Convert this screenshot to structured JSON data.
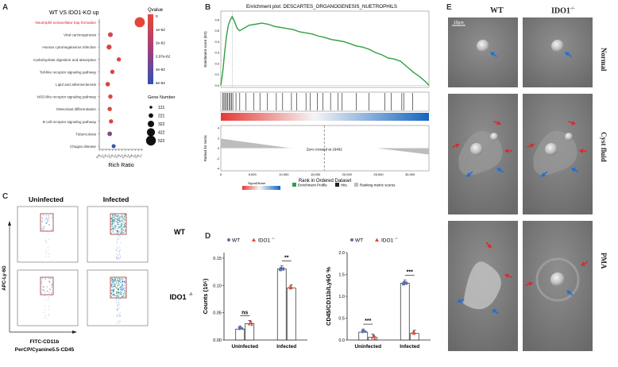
{
  "panels": {
    "A": {
      "letter": "A",
      "title": "WT VS IDO1-KO up",
      "xlabel": "Rich Ratio",
      "legend_q_title": "Qvalue",
      "legend_q_ticks": [
        "0",
        "1e-62",
        "2e-62",
        "2.97e-62",
        "4e-62",
        "5e-62"
      ],
      "legend_size_title": "Gene Number",
      "legend_size_values": [
        "121",
        "221",
        "322",
        "422",
        "522"
      ]
    },
    "B": {
      "letter": "B",
      "title": "Enrichment plot: DESCARTES_ORGANOGENESIS_NUETROPHILS",
      "ylabel_top": "Enrichment score (ES)",
      "ylabel_bottom": "Ranked list metric",
      "xlabel": "Rank in Ordered Dataset",
      "zero_cross": "Zero crossed at 16402",
      "legend_signal": "Signal2Noise",
      "legend_es": "Enrichment Profile",
      "legend_hits": "Hits",
      "legend_rank": "Ranking metric scores"
    },
    "C": {
      "letter": "C",
      "col1": "Uninfected",
      "col2": "Infected",
      "row1": "WT",
      "row2": "IDO1",
      "row2_sup": "-/-",
      "ylabel": "APC-Ly-6G",
      "xlabel1": "FITC-CD11b",
      "xlabel2": "PerCP/Cyanine5.5-CD45"
    },
    "D": {
      "letter": "D",
      "legend_wt": "WT",
      "legend_ko": "IDO1",
      "legend_ko_sup": "-/-",
      "left_ylabel": "Counts (10⁵)",
      "right_ylabel": "CD45/CD11b/Ly6G %",
      "cat1": "Uninfected",
      "cat2": "Infected"
    },
    "E": {
      "letter": "E",
      "col1": "WT",
      "col2": "IDO1",
      "col2_sup": "-/-",
      "row1": "Normal",
      "row2": "Cyst fluid",
      "row3": "PMA",
      "scalebar": "10μm"
    }
  },
  "colors": {
    "wt": "#5b6fb5",
    "ko": "#d94a3a",
    "es_line": "#2ea043",
    "red_text": "#d42020"
  },
  "chart_data": [
    {
      "panel": "A",
      "type": "scatter",
      "title": "WT VS IDO1-KO up",
      "xlabel": "Rich Ratio",
      "xticks": [
        "0.05",
        "0.1",
        "0.15",
        "0.2",
        "0.25",
        "0.3",
        "0.35",
        "0.4",
        "0.45",
        "0.5",
        "0.55",
        "0.6",
        "0.65",
        "0.7"
      ],
      "xlim": [
        0.05,
        0.72
      ],
      "categories": [
        "Neutrophil extracellular trap formation",
        "Viral carcinogenesis",
        "Human cytomegalovirus infection",
        "Carbohydrate digestion and absorption",
        "Toll-like receptor signaling pathway",
        "Lipid and atherosclerosis",
        "NOD-like receptor signaling pathway",
        "Osteoclast differentiation",
        "B cell receptor signaling pathway",
        "Tuberculosis",
        "Chagas disease"
      ],
      "highlight": "Neutrophil extracellular trap formation",
      "rich_ratio": [
        0.67,
        0.22,
        0.2,
        0.35,
        0.25,
        0.18,
        0.22,
        0.21,
        0.23,
        0.21,
        0.27
      ],
      "gene_number": [
        522,
        200,
        210,
        170,
        170,
        180,
        175,
        170,
        165,
        190,
        150
      ],
      "qvalue_rank": [
        0.0,
        0.1,
        0.1,
        0.05,
        0.05,
        0.08,
        0.1,
        0.05,
        0.08,
        0.55,
        0.95
      ]
    },
    {
      "panel": "B",
      "type": "line",
      "title": "Enrichment plot: DESCARTES_ORGANOGENESIS_NUETROPHILS",
      "xlabel": "Rank in Ordered Dataset",
      "ylabel": "Enrichment score (ES)",
      "xticks": [
        "0",
        "5,000",
        "10,000",
        "15,000",
        "20,000",
        "25,000",
        "30,000"
      ],
      "yticks": [
        "0.0",
        "0.1",
        "0.2",
        "0.3",
        "0.4",
        "0.5",
        "0.6"
      ],
      "xlim": [
        0,
        33000
      ],
      "ylim": [
        -0.02,
        0.68
      ],
      "x": [
        0,
        300,
        600,
        900,
        1200,
        1500,
        1800,
        2200,
        2600,
        3000,
        3600,
        4500,
        5500,
        6500,
        7500,
        8500,
        9500,
        10500,
        11500,
        12500,
        13500,
        14500,
        15500,
        16402,
        17500,
        18500,
        19500,
        20500,
        21500,
        22500,
        23500,
        24500,
        25500,
        26500,
        27500,
        28500,
        29500,
        30500,
        31500,
        32500,
        33000
      ],
      "y": [
        0.0,
        0.12,
        0.3,
        0.45,
        0.55,
        0.6,
        0.63,
        0.58,
        0.52,
        0.5,
        0.52,
        0.55,
        0.56,
        0.57,
        0.56,
        0.54,
        0.53,
        0.52,
        0.51,
        0.49,
        0.48,
        0.47,
        0.45,
        0.44,
        0.42,
        0.41,
        0.4,
        0.38,
        0.36,
        0.35,
        0.33,
        0.3,
        0.28,
        0.25,
        0.24,
        0.22,
        0.17,
        0.12,
        0.08,
        0.03,
        0.0
      ],
      "peak_x": 1800,
      "zero_cross": 16402,
      "ranked_yticks": [
        "4",
        "2",
        "0",
        "-2",
        "-4"
      ]
    },
    {
      "panel": "D-left",
      "type": "bar",
      "ylabel": "Counts (10⁵)",
      "yticks": [
        "0.00",
        "0.05",
        "0.10",
        "0.15"
      ],
      "ylim": [
        0,
        0.16
      ],
      "categories": [
        "Uninfected",
        "Infected"
      ],
      "series": [
        {
          "name": "WT",
          "values": [
            0.02,
            0.13
          ]
        },
        {
          "name": "IDO1⁻/⁻",
          "values": [
            0.03,
            0.095
          ]
        }
      ],
      "significance": [
        "ns",
        "**"
      ]
    },
    {
      "panel": "D-right",
      "type": "bar",
      "ylabel": "CD45/CD11b/Ly6G %",
      "yticks": [
        "0.0",
        "0.5",
        "1.0",
        "1.5",
        "2.0"
      ],
      "ylim": [
        0,
        2.0
      ],
      "categories": [
        "Uninfected",
        "Infected"
      ],
      "series": [
        {
          "name": "WT",
          "values": [
            0.18,
            1.3
          ]
        },
        {
          "name": "IDO1⁻/⁻",
          "values": [
            0.06,
            0.15
          ]
        }
      ],
      "significance": [
        "***",
        "***"
      ]
    }
  ]
}
